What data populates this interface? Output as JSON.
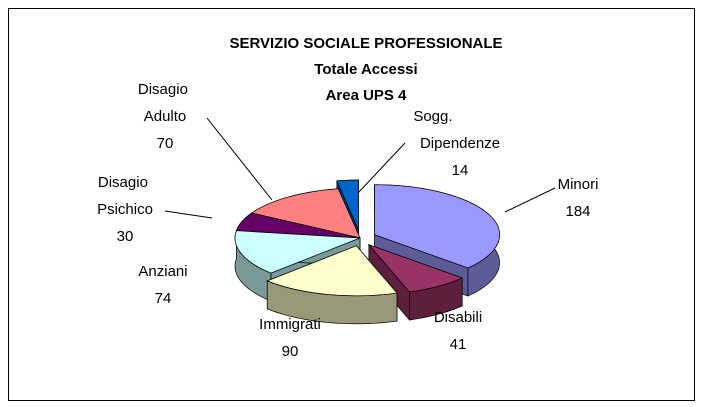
{
  "chart_data": {
    "type": "pie3d",
    "title": "SERVIZIO SOCIALE PROFESSIONALE",
    "subtitle": [
      "Totale Accessi",
      "Area UPS 4"
    ],
    "categories": [
      "Minori",
      "Disabili",
      "Immigrati",
      "Anziani",
      "Disagio Psichico",
      "Disagio Adulto",
      "Sogg. Dipendenze"
    ],
    "values": [
      184,
      41,
      90,
      74,
      30,
      70,
      14
    ],
    "colors": [
      "#9999ff",
      "#993366",
      "#ffffcc",
      "#ccffff",
      "#660066",
      "#ff8080",
      "#0066cc"
    ]
  }
}
